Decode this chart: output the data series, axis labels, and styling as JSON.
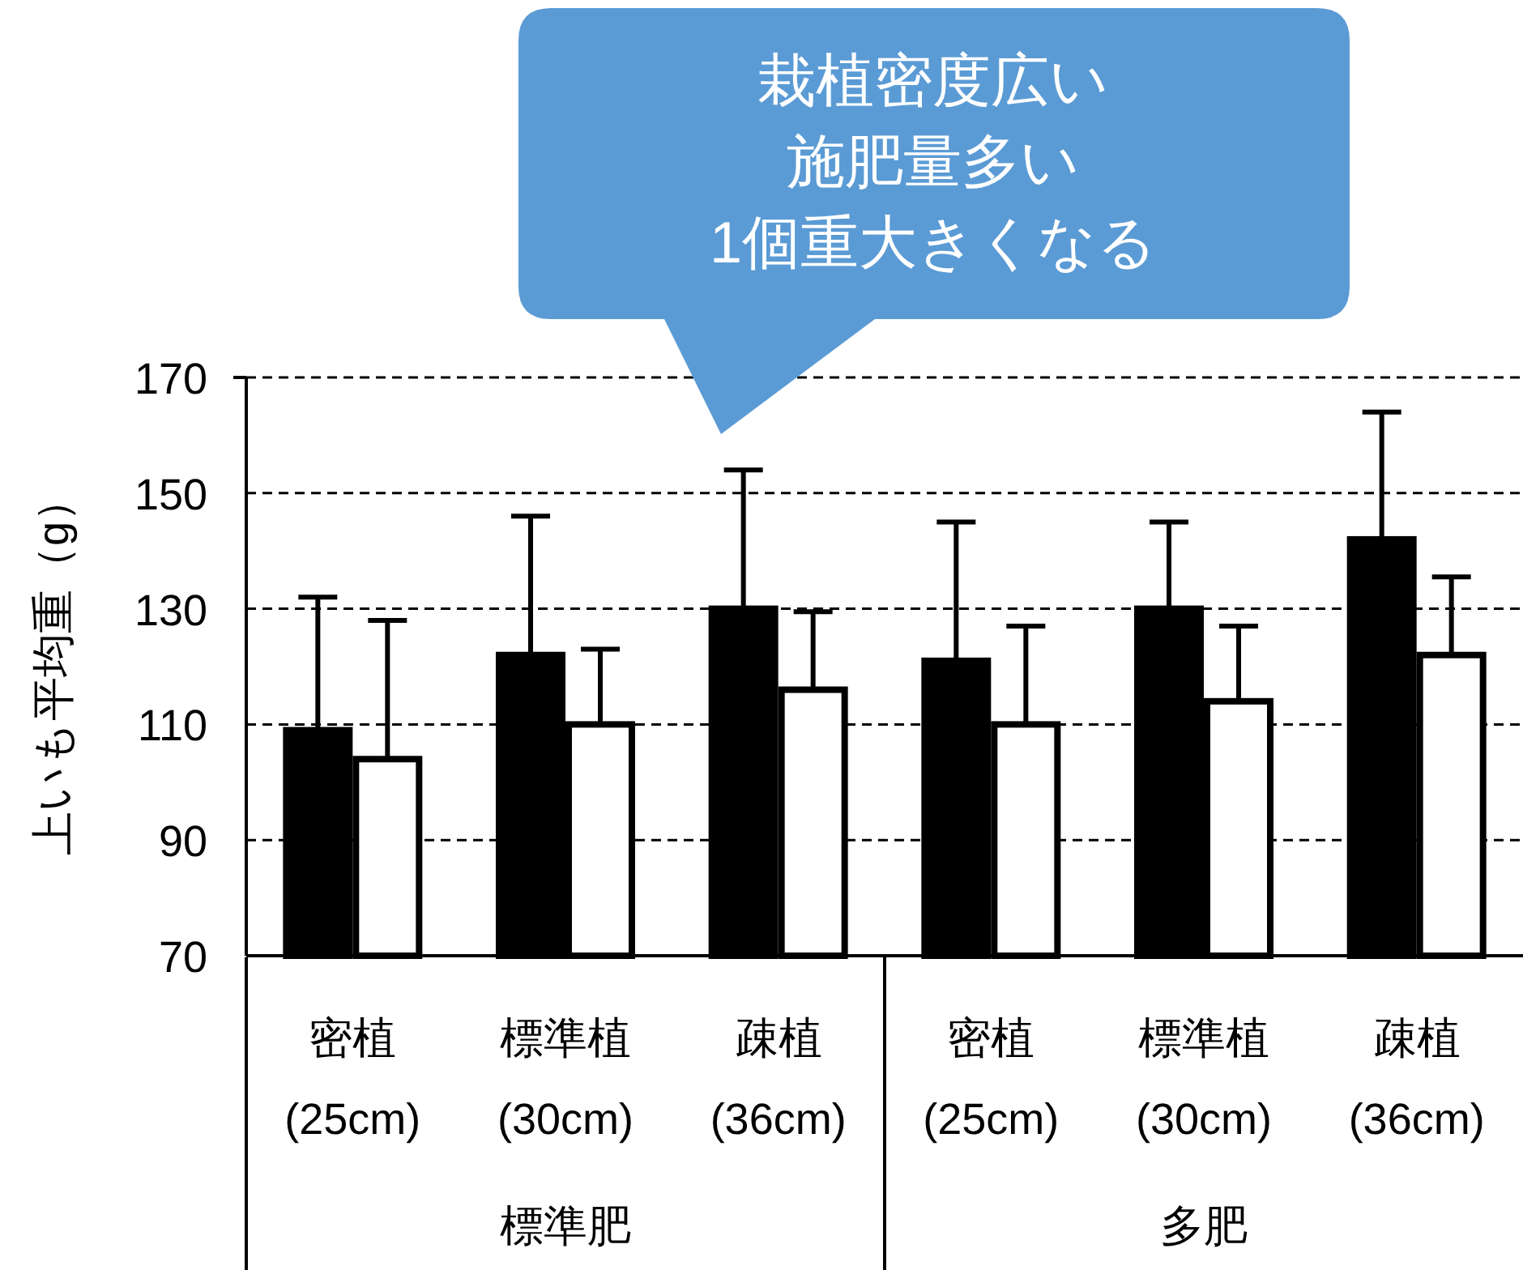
{
  "chart_data": {
    "type": "bar",
    "ylabel": "上いも平均重（g）",
    "categories": [
      "密植\n(25cm)",
      "標準植\n(30cm)",
      "疎植\n(36cm)",
      "密植\n(25cm)",
      "標準植\n(30cm)",
      "疎植\n(36cm)"
    ],
    "series": [
      {
        "color": "#000000",
        "values": [
          109,
          122,
          130,
          121,
          130,
          142
        ],
        "errors": [
          [
            109,
            132
          ],
          [
            122,
            146
          ],
          [
            130,
            154
          ],
          [
            121,
            145
          ],
          [
            130,
            145
          ],
          [
            142,
            164
          ]
        ]
      },
      {
        "color": "#ffffff",
        "values": [
          104,
          110,
          116,
          110,
          114,
          122
        ],
        "errors": [
          [
            104,
            128
          ],
          [
            110,
            123
          ],
          [
            116,
            129.5
          ],
          [
            110,
            127
          ],
          [
            114,
            127
          ],
          [
            122,
            135.5
          ]
        ]
      }
    ],
    "ylim": [
      70,
      170
    ],
    "yticks": [
      70,
      90,
      110,
      130,
      150,
      170
    ],
    "grid": "y",
    "annotations": [
      "栽植密度広い",
      "施肥量多い",
      "1個重大きくなる",
      "標準肥",
      "多肥"
    ]
  }
}
